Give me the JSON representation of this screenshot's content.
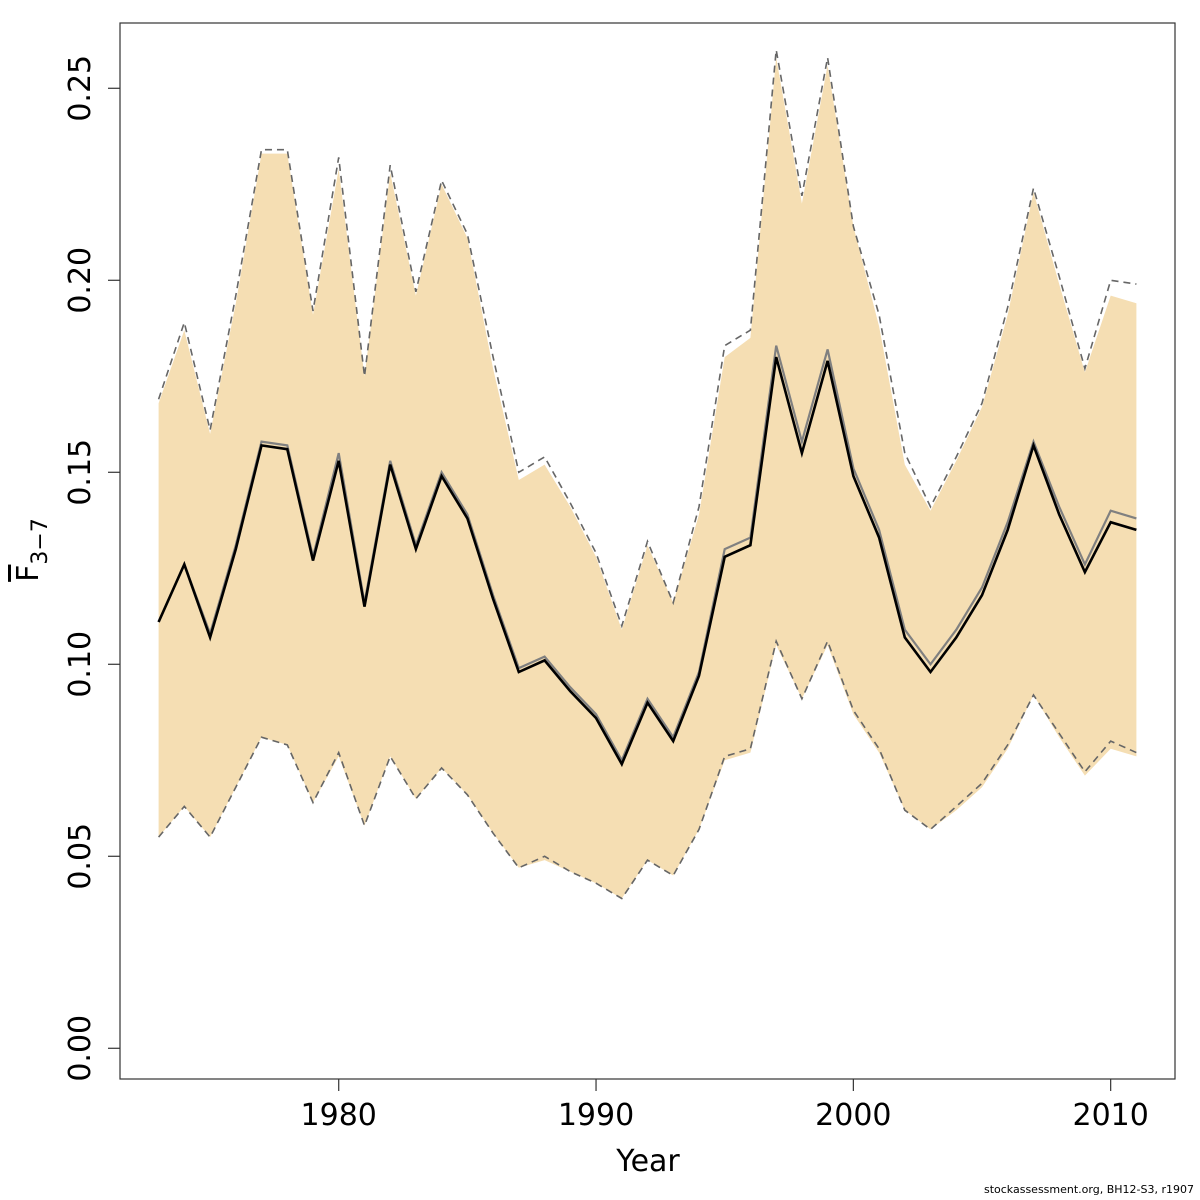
{
  "chart_data": {
    "type": "line",
    "xlabel": "Year",
    "ylabel": {
      "main": "F",
      "subscript": "3−7"
    },
    "xlim": [
      1971.5,
      2012.5
    ],
    "ylim": [
      -0.008,
      0.267
    ],
    "xticks": [
      1980,
      1990,
      2000,
      2010
    ],
    "yticks": [
      "0.00",
      "0.05",
      "0.10",
      "0.15",
      "0.20",
      "0.25"
    ],
    "band_color": "#F5DEB3",
    "x": [
      1973,
      1974,
      1975,
      1976,
      1977,
      1978,
      1979,
      1980,
      1981,
      1982,
      1983,
      1984,
      1985,
      1986,
      1987,
      1988,
      1989,
      1990,
      1991,
      1992,
      1993,
      1994,
      1995,
      1996,
      1997,
      1998,
      1999,
      2000,
      2001,
      2002,
      2003,
      2004,
      2005,
      2006,
      2007,
      2008,
      2009,
      2010,
      2011
    ],
    "series": [
      {
        "role": "estimate",
        "color": "#000000",
        "values": [
          0.111,
          0.126,
          0.107,
          0.13,
          0.157,
          0.156,
          0.127,
          0.153,
          0.115,
          0.152,
          0.13,
          0.149,
          0.138,
          0.117,
          0.098,
          0.101,
          0.093,
          0.086,
          0.074,
          0.09,
          0.08,
          0.097,
          0.128,
          0.131,
          0.18,
          0.155,
          0.179,
          0.149,
          0.133,
          0.107,
          0.098,
          0.107,
          0.118,
          0.135,
          0.157,
          0.139,
          0.124,
          0.137,
          0.135
        ]
      },
      {
        "role": "previous-estimate",
        "color": "#808080",
        "values": [
          0.111,
          0.126,
          0.108,
          0.131,
          0.158,
          0.157,
          0.128,
          0.155,
          0.116,
          0.153,
          0.131,
          0.15,
          0.139,
          0.118,
          0.099,
          0.102,
          0.094,
          0.087,
          0.075,
          0.091,
          0.081,
          0.098,
          0.13,
          0.133,
          0.183,
          0.158,
          0.182,
          0.151,
          0.135,
          0.109,
          0.1,
          0.109,
          0.12,
          0.137,
          0.158,
          0.141,
          0.126,
          0.14,
          0.138
        ]
      },
      {
        "role": "band-upper",
        "values": [
          0.168,
          0.187,
          0.16,
          0.194,
          0.233,
          0.233,
          0.191,
          0.229,
          0.175,
          0.228,
          0.196,
          0.225,
          0.211,
          0.177,
          0.148,
          0.152,
          0.141,
          0.128,
          0.109,
          0.131,
          0.116,
          0.139,
          0.18,
          0.185,
          0.258,
          0.22,
          0.256,
          0.214,
          0.188,
          0.152,
          0.14,
          0.153,
          0.167,
          0.191,
          0.223,
          0.199,
          0.176,
          0.196,
          0.194
        ]
      },
      {
        "role": "band-lower",
        "values": [
          0.055,
          0.063,
          0.055,
          0.068,
          0.081,
          0.079,
          0.064,
          0.076,
          0.058,
          0.076,
          0.065,
          0.073,
          0.066,
          0.056,
          0.047,
          0.049,
          0.046,
          0.043,
          0.039,
          0.049,
          0.045,
          0.057,
          0.075,
          0.077,
          0.105,
          0.091,
          0.105,
          0.087,
          0.077,
          0.062,
          0.057,
          0.062,
          0.068,
          0.078,
          0.092,
          0.081,
          0.071,
          0.078,
          0.076
        ]
      },
      {
        "role": "previous-band-upper",
        "color": "#666666",
        "values": [
          0.169,
          0.189,
          0.161,
          0.196,
          0.234,
          0.234,
          0.192,
          0.232,
          0.175,
          0.23,
          0.197,
          0.226,
          0.212,
          0.18,
          0.15,
          0.154,
          0.142,
          0.129,
          0.11,
          0.132,
          0.116,
          0.141,
          0.183,
          0.187,
          0.26,
          0.222,
          0.258,
          0.214,
          0.191,
          0.155,
          0.141,
          0.154,
          0.168,
          0.193,
          0.224,
          0.201,
          0.177,
          0.2,
          0.199
        ]
      },
      {
        "role": "previous-band-lower",
        "color": "#666666",
        "values": [
          0.055,
          0.063,
          0.055,
          0.068,
          0.081,
          0.079,
          0.064,
          0.077,
          0.058,
          0.076,
          0.065,
          0.073,
          0.066,
          0.056,
          0.047,
          0.05,
          0.046,
          0.043,
          0.039,
          0.049,
          0.045,
          0.057,
          0.076,
          0.078,
          0.106,
          0.091,
          0.106,
          0.088,
          0.078,
          0.062,
          0.057,
          0.063,
          0.069,
          0.079,
          0.092,
          0.082,
          0.072,
          0.08,
          0.077
        ]
      }
    ]
  },
  "footer": "stockassessment.org, BH12-S3, r1907"
}
